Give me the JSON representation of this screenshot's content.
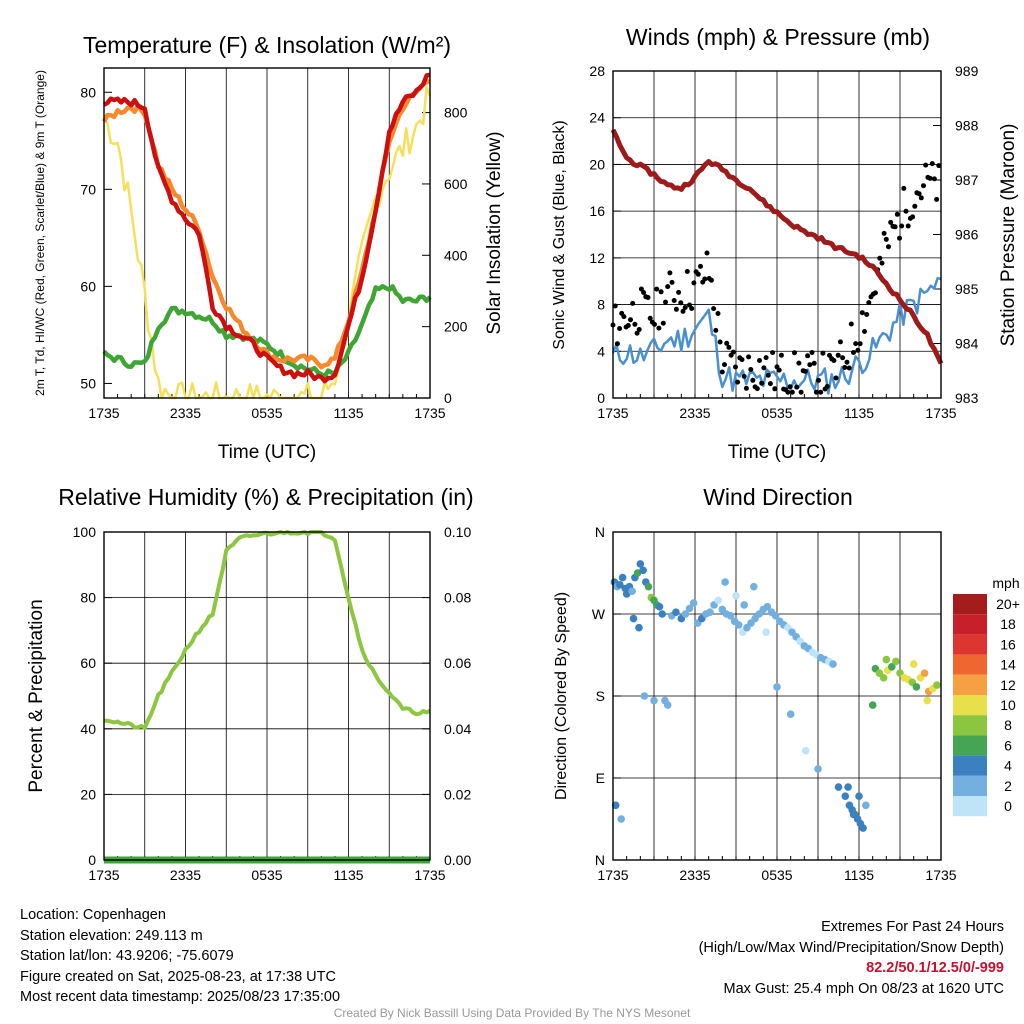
{
  "chart_data": [
    {
      "type": "line",
      "title": "Temperature (F) & Insolation (W/m²)",
      "xlabel": "Time (UTC)",
      "ylabel_left": "2m T, Td, HI/WC (Red, Green, Scarlet/Blue) & 9m T (Orange)",
      "ylabel_right": "Solar Insolation (Yellow)",
      "x_ticks": [
        "1735",
        "2335",
        "0535",
        "1135",
        "1735"
      ],
      "ylim_left": [
        48.5,
        82.5
      ],
      "ylim_right": [
        0,
        925
      ],
      "yticks_left": [
        50,
        60,
        70,
        80
      ],
      "yticks_right": [
        0,
        200,
        400,
        600,
        800
      ],
      "hours": [
        0,
        1,
        2,
        3,
        4,
        5,
        6,
        7,
        8,
        9,
        10,
        11,
        12,
        13,
        14,
        15,
        16,
        17,
        18,
        19,
        20,
        21,
        22,
        23,
        24
      ],
      "series": [
        {
          "name": "2m T",
          "color": "#cc1010",
          "values": [
            79,
            79,
            79,
            78.5,
            72,
            69,
            67,
            65.5,
            58,
            56,
            55,
            54,
            52.5,
            51.5,
            51,
            51,
            50.5,
            51,
            56,
            61,
            68,
            76,
            79,
            80,
            82
          ]
        },
        {
          "name": "9m T",
          "color": "#f7892d",
          "values": [
            77,
            78,
            78.5,
            78,
            72.5,
            70,
            68,
            66,
            61,
            58,
            56,
            54.5,
            53,
            52.5,
            52.5,
            52.5,
            52,
            52.5,
            56.5,
            61.5,
            68,
            75,
            78.5,
            80,
            81.5
          ]
        },
        {
          "name": "Td",
          "color": "#3fa535",
          "values": [
            53,
            52.5,
            52,
            52,
            56,
            57.5,
            57.5,
            57,
            56.5,
            55,
            55,
            54.5,
            54,
            53,
            52,
            51.5,
            51,
            51,
            53,
            56,
            59.5,
            60,
            58.5,
            58.5,
            59
          ]
        },
        {
          "name": "Solar Insolation",
          "color": "#f6e05a",
          "axis": "right",
          "values": [
            780,
            720,
            520,
            290,
            40,
            0,
            0,
            0,
            0,
            0,
            0,
            0,
            0,
            0,
            0,
            0,
            0,
            60,
            220,
            400,
            560,
            640,
            700,
            760,
            850
          ]
        }
      ]
    },
    {
      "type": "line",
      "title": "Winds (mph) & Pressure (mb)",
      "xlabel": "Time (UTC)",
      "ylabel_left": "Sonic Wind & Gust (Blue, Black)",
      "ylabel_right": "Station Pressure (Maroon)",
      "x_ticks": [
        "1735",
        "2335",
        "0535",
        "1135",
        "1735"
      ],
      "ylim_left": [
        0,
        28
      ],
      "ylim_right": [
        983,
        989
      ],
      "yticks_left": [
        0,
        4,
        8,
        12,
        16,
        20,
        24,
        28
      ],
      "yticks_right": [
        983,
        984,
        985,
        986,
        987,
        988,
        989
      ],
      "hours": [
        0,
        1,
        2,
        3,
        4,
        5,
        6,
        7,
        8,
        9,
        10,
        11,
        12,
        13,
        14,
        15,
        16,
        17,
        18,
        19,
        20,
        21,
        22,
        23,
        24
      ],
      "series": [
        {
          "name": "Sonic Wind",
          "color": "#4a90d0",
          "values": [
            3.5,
            4,
            3.5,
            4,
            5,
            5,
            6,
            7,
            2,
            1.5,
            1.5,
            1.5,
            1.5,
            1.5,
            1.5,
            1.5,
            1.5,
            2,
            3,
            4,
            5.5,
            7,
            8,
            9,
            10
          ]
        },
        {
          "name": "Gust",
          "color": "#000000",
          "values": [
            6,
            7,
            7.5,
            7,
            9,
            9,
            9.5,
            11,
            3.5,
            2.5,
            2.5,
            2.5,
            2,
            2,
            2,
            2,
            2,
            3.5,
            6,
            9,
            13,
            15.5,
            17.5,
            18.5,
            18
          ]
        },
        {
          "name": "Station Pressure",
          "color": "#9e1b1b",
          "axis": "right",
          "values": [
            987.9,
            987.4,
            987.25,
            987.1,
            986.9,
            986.85,
            987.05,
            987.35,
            987.2,
            987.0,
            986.85,
            986.6,
            986.4,
            986.2,
            986.05,
            985.95,
            985.8,
            985.7,
            985.6,
            985.4,
            985.1,
            984.8,
            984.5,
            984.15,
            983.6
          ]
        }
      ]
    },
    {
      "type": "line",
      "title": "Relative Humidity (%) & Precipitation (in)",
      "xlabel": "",
      "ylabel_left": "Percent & Precipitation",
      "x_ticks": [
        "1735",
        "2335",
        "0535",
        "1135",
        "1735"
      ],
      "ylim_left": [
        0,
        100
      ],
      "ylim_right": [
        0,
        0.1
      ],
      "yticks_left": [
        0,
        20,
        40,
        60,
        80,
        100
      ],
      "yticks_right": [
        0.0,
        0.02,
        0.04,
        0.06,
        0.08,
        0.1
      ],
      "ytick_labels_right": [
        "0.00",
        "0.02",
        "0.04",
        "0.06",
        "0.08",
        "0.10"
      ],
      "hours": [
        0,
        1,
        2,
        3,
        4,
        5,
        6,
        7,
        8,
        9,
        10,
        11,
        12,
        13,
        14,
        15,
        16,
        17,
        18,
        19,
        20,
        21,
        22,
        23,
        24
      ],
      "series": [
        {
          "name": "Relative Humidity",
          "color": "#8dc63f",
          "values": [
            43,
            42,
            41,
            40,
            50,
            57,
            64,
            70,
            75,
            94,
            98,
            99,
            99.5,
            100,
            100,
            100,
            100,
            98,
            80,
            64,
            56,
            51,
            46,
            45,
            45
          ]
        },
        {
          "name": "Precipitation",
          "color": "#3fa535",
          "values": [
            0,
            0,
            0,
            0,
            0,
            0,
            0,
            0,
            0,
            0,
            0,
            0,
            0,
            0,
            0,
            0,
            0,
            0,
            0,
            0,
            0,
            0,
            0,
            0,
            0
          ]
        }
      ]
    },
    {
      "type": "scatter",
      "title": "Wind Direction",
      "ylabel_left": "Direction (Colored By Speed)",
      "x_ticks": [
        "1735",
        "2335",
        "0535",
        "1135",
        "1735"
      ],
      "ylim_left": [
        0,
        360
      ],
      "yticks_labels": [
        "N",
        "E",
        "S",
        "W",
        "N"
      ],
      "colorbar_title": "mph",
      "colorbar_labels": [
        "20+",
        "18",
        "16",
        "14",
        "12",
        "10",
        "8",
        "6",
        "4",
        "2",
        "0"
      ],
      "colorbar_colors": [
        "#a51c1c",
        "#c8202a",
        "#dd3530",
        "#ef6630",
        "#f7a043",
        "#e8e04a",
        "#8cc640",
        "#44a555",
        "#3b80c0",
        "#73b0e0",
        "#bfe4f7"
      ],
      "points_hours": [
        0.1,
        0.3,
        0.5,
        0.7,
        0.9,
        0.2,
        0.6,
        1.0,
        1.2,
        1.4,
        1.6,
        1.8,
        2.0,
        2.2,
        2.4,
        2.6,
        2.8,
        3.0,
        3.2,
        3.4,
        3.6,
        1.5,
        1.9,
        2.3,
        3.0,
        3.8,
        4.0,
        4.3,
        4.6,
        5.0,
        5.3,
        5.6,
        5.9,
        6.2,
        6.5,
        6.8,
        7.1,
        7.4,
        7.7,
        8.0,
        8.3,
        8.6,
        8.9,
        9.2,
        9.5,
        9.8,
        10.1,
        10.4,
        10.7,
        11.0,
        11.3,
        11.6,
        11.9,
        12.2,
        12.5,
        12.8,
        13.1,
        13.4,
        13.7,
        14.0,
        14.3,
        14.6,
        14.9,
        15.2,
        15.5,
        15.8,
        16.1,
        8.2,
        9.0,
        9.6,
        10.3,
        11.2,
        12.0,
        13.0,
        14.1,
        15.0,
        16.5,
        17.0,
        17.3,
        17.5,
        17.7,
        17.9,
        18.1,
        18.3,
        18.5,
        17.2,
        17.6,
        18.0,
        19.2,
        19.5,
        19.8,
        20.1,
        20.4,
        20.7,
        21.0,
        21.3,
        21.6,
        21.9,
        22.2,
        22.5,
        22.8,
        23.1,
        23.4,
        23.7,
        19.0,
        20.0,
        22.0,
        23.0
      ],
      "points_dir": [
        305,
        300,
        302,
        310,
        298,
        60,
        45,
        292,
        300,
        295,
        310,
        315,
        325,
        318,
        305,
        300,
        288,
        285,
        280,
        278,
        270,
        265,
        255,
        180,
        175,
        175,
        170,
        268,
        272,
        265,
        270,
        276,
        282,
        260,
        265,
        270,
        272,
        280,
        285,
        275,
        270,
        268,
        262,
        258,
        250,
        255,
        260,
        265,
        270,
        275,
        278,
        272,
        268,
        262,
        258,
        255,
        250,
        245,
        240,
        235,
        232,
        228,
        225,
        222,
        220,
        218,
        215,
        305,
        290,
        280,
        300,
        250,
        190,
        160,
        120,
        100,
        80,
        70,
        60,
        55,
        50,
        45,
        40,
        35,
        60,
        80,
        50,
        70,
        210,
        205,
        200,
        208,
        212,
        218,
        205,
        200,
        198,
        195,
        190,
        200,
        205,
        185,
        188,
        192,
        170,
        220,
        215,
        175
      ],
      "points_speed": [
        3,
        2,
        3,
        4,
        3,
        3,
        2,
        4,
        3,
        2,
        4,
        5,
        4,
        3,
        4,
        6,
        8,
        6,
        5,
        4,
        4,
        3,
        3,
        1,
        2,
        1,
        1,
        2,
        3,
        4,
        2,
        1,
        1,
        2,
        3,
        2,
        1,
        1,
        0,
        1,
        1,
        2,
        1,
        1,
        0,
        1,
        2,
        1,
        1,
        2,
        1,
        1,
        2,
        1,
        1,
        0,
        1,
        1,
        0,
        1,
        1,
        0,
        0,
        1,
        1,
        0,
        1,
        1,
        0,
        1,
        1,
        0,
        1,
        1,
        0,
        1,
        3,
        4,
        4,
        3,
        5,
        4,
        3,
        4,
        2,
        3,
        4,
        3,
        6,
        8,
        7,
        9,
        6,
        8,
        7,
        9,
        10,
        8,
        6,
        9,
        11,
        12,
        10,
        8,
        6,
        7,
        10,
        9
      ]
    }
  ],
  "info": {
    "location": "Location: Copenhagen",
    "elevation": "Station elevation: 249.113 m",
    "latlon": "Station lat/lon: 43.9206; -75.6079",
    "created": "Figure created on Sat, 2025-08-23, at 17:38 UTC",
    "recent": "Most recent data timestamp: 2025/08/23 17:35:00"
  },
  "extremes": {
    "title": "Extremes For Past 24 Hours",
    "subtitle": "(High/Low/Max Wind/Precipitation/Snow Depth)",
    "values": "82.2/50.1/12.5/0/-999",
    "gust": "Max Gust: 25.4 mph On 08/23 at 1620 UTC"
  },
  "credit": "Created By Nick Bassill Using Data Provided By The NYS Mesonet"
}
